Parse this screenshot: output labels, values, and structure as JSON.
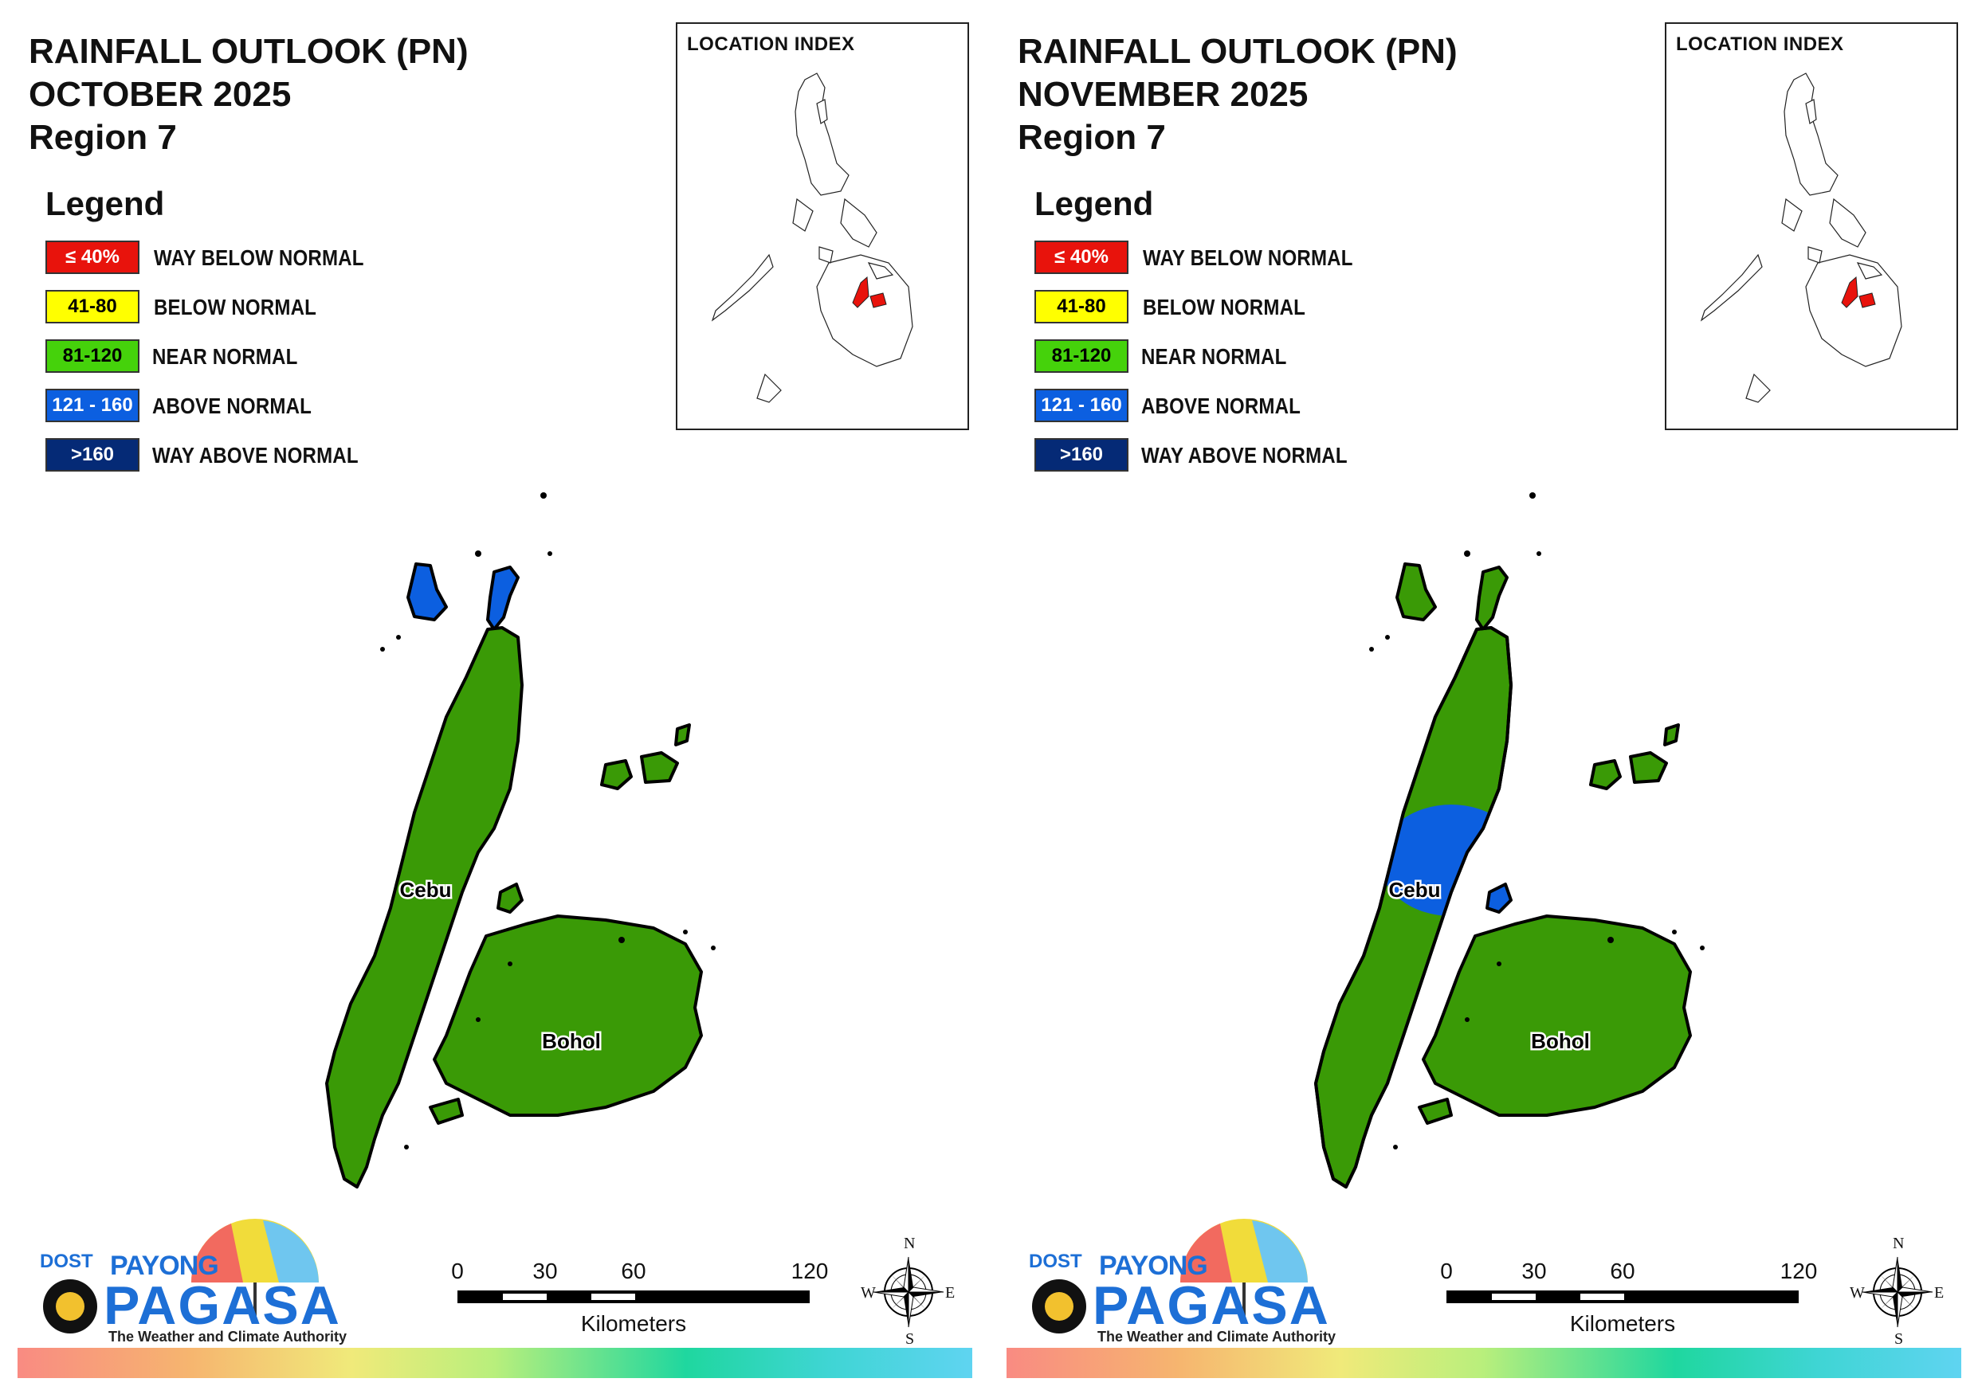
{
  "panels": [
    {
      "title_line1": "RAINFALL OUTLOOK (PN)",
      "title_line2": "OCTOBER 2025",
      "title_line3": "Region 7",
      "cebu_north_color": "#3d8f05",
      "cebu_center_above_normal": false,
      "bantayan_category": "ABOVE NORMAL",
      "cebu_category": "NEAR NORMAL",
      "bohol_category": "NEAR NORMAL"
    },
    {
      "title_line1": "RAINFALL OUTLOOK (PN)",
      "title_line2": "NOVEMBER 2025",
      "title_line3": "Region 7",
      "cebu_north_color": "#3d8f05",
      "cebu_center_above_normal": true,
      "bantayan_category": "NEAR NORMAL",
      "cebu_category": "NEAR NORMAL",
      "bohol_category": "NEAR NORMAL"
    }
  ],
  "legend": {
    "heading": "Legend",
    "items": [
      {
        "range": "≤ 40%",
        "label": "WAY BELOW NORMAL",
        "color": "#e8130c",
        "text_color": "#ffffff"
      },
      {
        "range": "41-80",
        "label": "BELOW NORMAL",
        "color": "#ffff00",
        "text_color": "#000000"
      },
      {
        "range": "81-120",
        "label": "NEAR NORMAL",
        "color": "#45d20b",
        "text_color": "#000000"
      },
      {
        "range": "121 - 160",
        "label": "ABOVE NORMAL",
        "color": "#0c5fe0",
        "text_color": "#ffffff"
      },
      {
        "range": ">160",
        "label": "WAY ABOVE NORMAL",
        "color": "#052a76",
        "text_color": "#ffffff"
      }
    ]
  },
  "location_index": {
    "title": "LOCATION INDEX",
    "highlight_color": "#e8130c"
  },
  "map_labels": {
    "cebu": "Cebu",
    "bohol": "Bohol"
  },
  "colors": {
    "near_normal_fill": "#3a9a06",
    "above_normal_fill": "#0c5fe0"
  },
  "scale": {
    "ticks": [
      "0",
      "30",
      "60",
      "120"
    ],
    "unit": "Kilometers"
  },
  "compass": {
    "n": "N",
    "s": "S",
    "e": "E",
    "w": "W"
  },
  "logo": {
    "dost": "DOST",
    "payong": "PAYONG",
    "pagasa": "PAGASA",
    "tagline": "The Weather and Climate Authority"
  }
}
